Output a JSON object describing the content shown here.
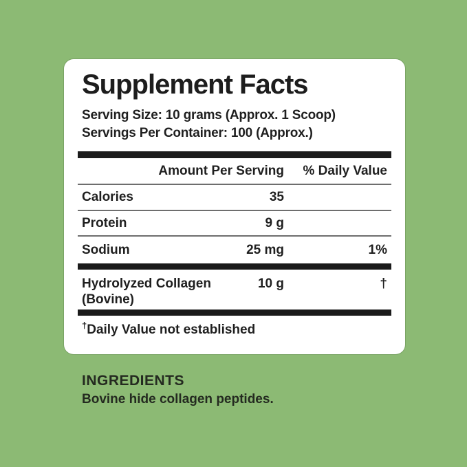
{
  "colors": {
    "background": "#8cba74",
    "panel_background": "#ffffff",
    "text": "#1f1f1f",
    "section_bar": "#1b1b1b",
    "row_divider": "#6e6e6e"
  },
  "panel": {
    "title": "Supplement Facts",
    "serving_size": "Serving Size: 10 grams (Approx. 1 Scoop)",
    "servings_per_container": "Servings Per Container: 100 (Approx.)",
    "columns": {
      "amount": "Amount Per Serving",
      "daily_value": "% Daily Value"
    },
    "rows": [
      {
        "name": "Calories",
        "amount": "35",
        "daily_value": ""
      },
      {
        "name": "Protein",
        "amount": "9 g",
        "daily_value": ""
      },
      {
        "name": "Sodium",
        "amount": "25 mg",
        "daily_value": "1%"
      }
    ],
    "highlight_row": {
      "name": "Hydrolyzed Collagen (Bovine)",
      "amount": "10 g",
      "daily_value": "†"
    },
    "footnote_symbol": "†",
    "footnote_text": "Daily Value not established"
  },
  "ingredients": {
    "heading": "INGREDIENTS",
    "text": "Bovine hide collagen peptides."
  }
}
